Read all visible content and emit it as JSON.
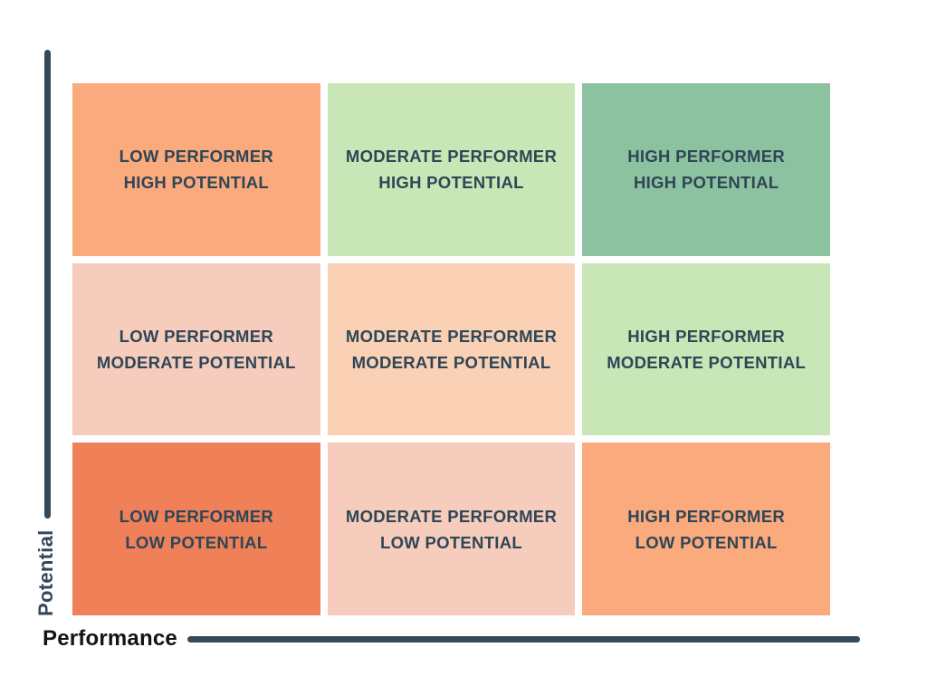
{
  "axes": {
    "y_label": "Potential",
    "x_label": "Performance"
  },
  "colors": {
    "axis_line": "#344A5A",
    "y_label_text": "#33475B",
    "x_label_text": "#101418",
    "cell_text": "#2E4656",
    "orange": "#FAAA7D",
    "light_green": "#C9E7B6",
    "medium_green": "#8CC2A0",
    "pink": "#F6CCBC",
    "peach": "#FAD1B5",
    "coral": "#EF8058"
  },
  "grid": {
    "rows": 3,
    "cols": 3,
    "cells": [
      {
        "line1": "LOW PERFORMER",
        "line2": "HIGH POTENTIAL",
        "bg": "#FAAA7D"
      },
      {
        "line1": "MODERATE PERFORMER",
        "line2": "HIGH POTENTIAL",
        "bg": "#C9E7B6"
      },
      {
        "line1": "HIGH PERFORMER",
        "line2": "HIGH POTENTIAL",
        "bg": "#8CC2A0"
      },
      {
        "line1": "LOW PERFORMER",
        "line2": "MODERATE POTENTIAL",
        "bg": "#F6CCBC"
      },
      {
        "line1": "MODERATE PERFORMER",
        "line2": "MODERATE POTENTIAL",
        "bg": "#FAD1B5"
      },
      {
        "line1": "HIGH PERFORMER",
        "line2": "MODERATE POTENTIAL",
        "bg": "#C9E7B6"
      },
      {
        "line1": "LOW PERFORMER",
        "line2": "LOW POTENTIAL",
        "bg": "#EF8058"
      },
      {
        "line1": "MODERATE PERFORMER",
        "line2": "LOW POTENTIAL",
        "bg": "#F6CCBC"
      },
      {
        "line1": "HIGH PERFORMER",
        "line2": "LOW POTENTIAL",
        "bg": "#FAAA7D"
      }
    ]
  }
}
